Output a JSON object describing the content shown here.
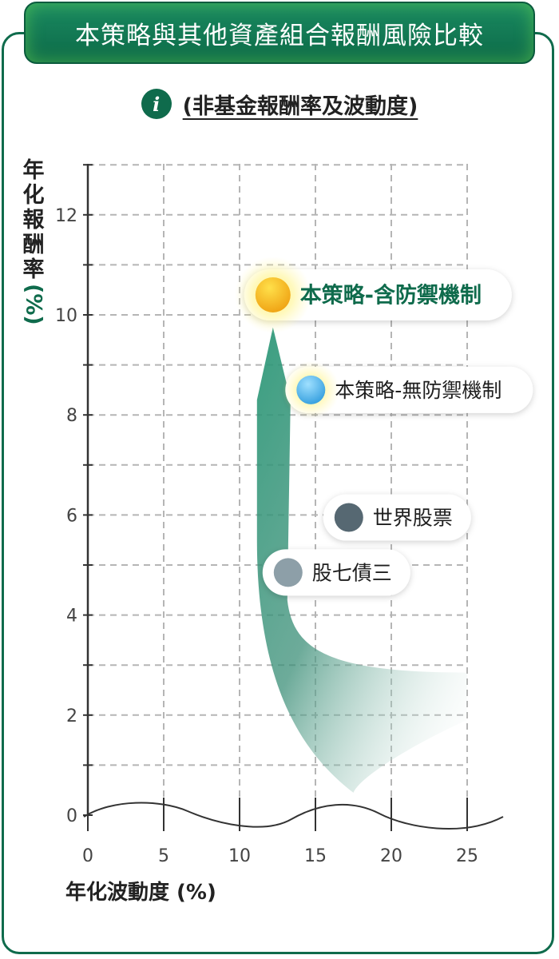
{
  "header": {
    "title": "本策略與其他資產組合報酬風險比較",
    "subtitle": "(非基金報酬率及波動度)",
    "info_icon": "info-icon"
  },
  "chart_data": {
    "type": "scatter",
    "title": "本策略與其他資產組合報酬風險比較",
    "subtitle": "(非基金報酬率及波動度)",
    "xlabel": "年化波動度 (%)",
    "ylabel_chars": [
      "年",
      "化",
      "報",
      "酬",
      "率"
    ],
    "ylabel_unit": "(%)",
    "xlim": [
      0,
      25
    ],
    "ylim": [
      0,
      13
    ],
    "x_ticks": [
      "0",
      "5",
      "10",
      "15",
      "20",
      "25"
    ],
    "y_ticks": [
      "0",
      "2",
      "4",
      "6",
      "8",
      "10",
      "12"
    ],
    "grid": true,
    "points": [
      {
        "name": "本策略-含防禦機制",
        "x": 12.2,
        "y": 10.4,
        "color": "#f0b21e",
        "highlight": true
      },
      {
        "name": "本策略-無防禦機制",
        "x": 14.7,
        "y": 8.5,
        "color": "#5ab8e8",
        "highlight": false
      },
      {
        "name": "世界股票",
        "x": 17.2,
        "y": 5.95,
        "color": "#566872",
        "highlight": false
      },
      {
        "name": "股七債三",
        "x": 13.2,
        "y": 4.85,
        "color": "#8d9fa8",
        "highlight": false
      }
    ],
    "colors": {
      "accent": "#0f6b4c",
      "arrow": "#2f9a7a",
      "grid": "#b5b5b5",
      "axis": "#333333"
    }
  }
}
